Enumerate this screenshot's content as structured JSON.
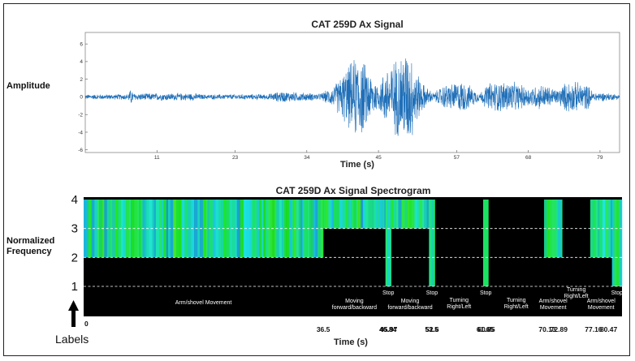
{
  "chart_data": [
    {
      "type": "line",
      "title": "CAT 259D Ax Signal",
      "xlabel": "Time (s)",
      "ylabel": "Amplitude",
      "xlim": [
        0,
        82
      ],
      "ylim": [
        -6.3,
        7.3
      ],
      "xticks": [
        11,
        23,
        34,
        45,
        57,
        68,
        79
      ],
      "yticks": [
        -6,
        -4,
        -2,
        0,
        2,
        4,
        6
      ],
      "color": "#1f6fb8",
      "envelope": [
        {
          "t": 0,
          "a": 0.3
        },
        {
          "t": 6.5,
          "a": 0.35
        },
        {
          "t": 7.0,
          "a": 1.0
        },
        {
          "t": 7.5,
          "a": 0.45
        },
        {
          "t": 17,
          "a": 0.45
        },
        {
          "t": 18,
          "a": 0.3
        },
        {
          "t": 28,
          "a": 0.35
        },
        {
          "t": 30,
          "a": 0.7
        },
        {
          "t": 34,
          "a": 0.5
        },
        {
          "t": 36,
          "a": 0.4
        },
        {
          "t": 38,
          "a": 1.2
        },
        {
          "t": 40,
          "a": 3.5
        },
        {
          "t": 42,
          "a": 5.5
        },
        {
          "t": 43,
          "a": 4.0
        },
        {
          "t": 45,
          "a": 1.5
        },
        {
          "t": 46,
          "a": 3.5
        },
        {
          "t": 48,
          "a": 5.0
        },
        {
          "t": 49,
          "a": 6.2
        },
        {
          "t": 50,
          "a": 5.5
        },
        {
          "t": 51,
          "a": 3.0
        },
        {
          "t": 52,
          "a": 1.5
        },
        {
          "t": 53.5,
          "a": 0.5
        },
        {
          "t": 55,
          "a": 1.5
        },
        {
          "t": 58,
          "a": 2.0
        },
        {
          "t": 60.5,
          "a": 0.5
        },
        {
          "t": 62,
          "a": 1.8
        },
        {
          "t": 65,
          "a": 2.0
        },
        {
          "t": 68,
          "a": 1.2
        },
        {
          "t": 70,
          "a": 1.6
        },
        {
          "t": 72.5,
          "a": 0.9
        },
        {
          "t": 74,
          "a": 2.0
        },
        {
          "t": 77,
          "a": 1.6
        },
        {
          "t": 78,
          "a": 0.6
        },
        {
          "t": 80,
          "a": 0.5
        },
        {
          "t": 82,
          "a": 0.3
        }
      ]
    },
    {
      "type": "heatmap",
      "title": "CAT 259D Ax Signal Spectrogram",
      "xlabel": "Time (s)",
      "ylabel": "Normalized Frequency",
      "ylabel_lines": [
        "Normalized",
        "Frequency"
      ],
      "xlim": [
        0,
        82
      ],
      "ylim": [
        0,
        4
      ],
      "yticks": [
        1,
        2,
        3,
        4
      ],
      "origin_label": "0",
      "bottom_label": "Labels",
      "thresholds": [
        1,
        2,
        3
      ],
      "activity_profile": [
        {
          "start": 0,
          "end": 36.5,
          "level": 2
        },
        {
          "start": 36.5,
          "end": 45.97,
          "level": 3
        },
        {
          "start": 45.97,
          "end": 46.84,
          "level": 1
        },
        {
          "start": 46.84,
          "end": 52.6,
          "level": 3
        },
        {
          "start": 52.6,
          "end": 53.5,
          "level": 1
        },
        {
          "start": 53.5,
          "end": 60.85,
          "level": 4
        },
        {
          "start": 60.85,
          "end": 61.65,
          "level": 1
        },
        {
          "start": 61.65,
          "end": 70.13,
          "level": 4
        },
        {
          "start": 70.13,
          "end": 72.89,
          "level": 2
        },
        {
          "start": 72.89,
          "end": 77.16,
          "level": 4
        },
        {
          "start": 77.16,
          "end": 80.47,
          "level": 2
        },
        {
          "start": 80.47,
          "end": 82,
          "level": 1
        }
      ],
      "segments": [
        {
          "label": "Arm/shovel Movement",
          "start": 0,
          "end": 36.5
        },
        {
          "label": "Stop",
          "start": 45.97,
          "end": 46.84
        },
        {
          "label": "Stop",
          "start": 52.6,
          "end": 53.5
        },
        {
          "label": "Stop",
          "start": 60.85,
          "end": 61.65
        },
        {
          "label": "Stop",
          "start": 80.47,
          "end": 82
        }
      ],
      "annotations": [
        {
          "text": "Moving forward/backward",
          "lines": [
            "Moving",
            "forward/backward"
          ],
          "start": 36.5,
          "end": 45.97
        },
        {
          "text": "Moving forward/backward",
          "lines": [
            "Moving",
            "forward/backward"
          ],
          "start": 46.84,
          "end": 52.6
        },
        {
          "text": "Turning Right/Left",
          "lines": [
            "Turning",
            "Right/Left"
          ],
          "start": 53.5,
          "end": 60.85
        },
        {
          "text": "Turning Right/Left",
          "lines": [
            "Turning",
            "Right/Left"
          ],
          "start": 61.65,
          "end": 70.13
        },
        {
          "text": "Arm/shovel Movement",
          "lines": [
            "Arm/shovel",
            "Movement"
          ],
          "start": 70.13,
          "end": 72.89
        },
        {
          "text": "Turning Right/Left",
          "lines": [
            "Turning",
            "Right/Left"
          ],
          "start": 72.89,
          "end": 77.16
        },
        {
          "text": "Arm/shovel Movement",
          "lines": [
            "Arm/shovel",
            "Movement"
          ],
          "start": 77.16,
          "end": 80.47
        }
      ],
      "time_marks": [
        "36.5",
        "45.97",
        "46.84",
        "52.6",
        "53.5",
        "60.85",
        "61.65",
        "70.13",
        "72.89",
        "77.16",
        "80.47"
      ]
    }
  ]
}
